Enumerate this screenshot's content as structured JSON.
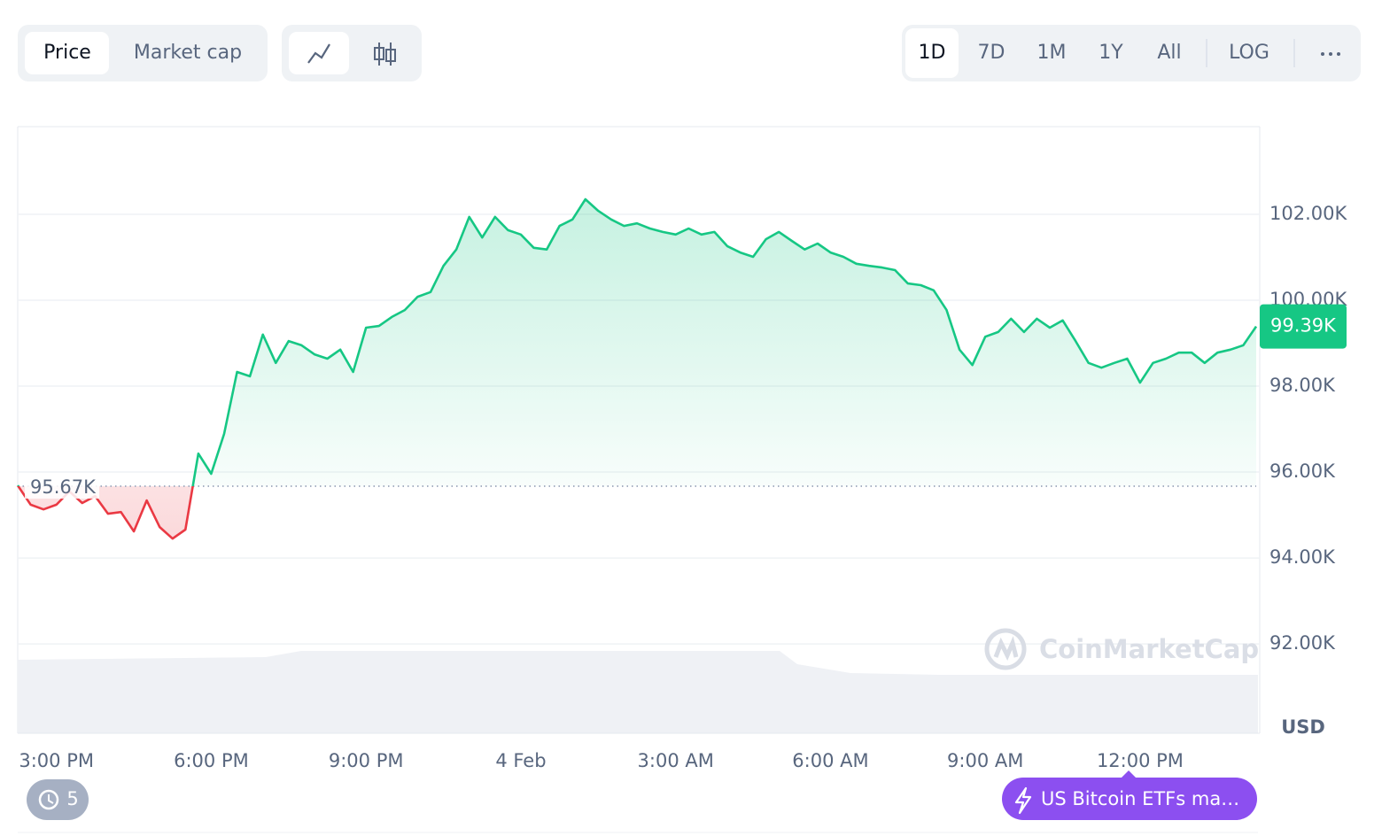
{
  "toolbar": {
    "metric_tabs": [
      "Price",
      "Market cap"
    ],
    "ranges": [
      "1D",
      "7D",
      "1M",
      "1Y",
      "All"
    ],
    "scale_button": "LOG"
  },
  "chart_data": {
    "type": "line",
    "categories": [
      null,
      null,
      null,
      "3:00 PM",
      null,
      null,
      null,
      null,
      null,
      null,
      null,
      null,
      null,
      null,
      null,
      "6:00 PM",
      null,
      null,
      null,
      null,
      null,
      null,
      null,
      null,
      null,
      null,
      null,
      "9:00 PM",
      null,
      null,
      null,
      null,
      null,
      null,
      null,
      null,
      null,
      null,
      null,
      "4 Feb",
      null,
      null,
      null,
      null,
      null,
      null,
      null,
      null,
      null,
      null,
      null,
      "3:00 AM",
      null,
      null,
      null,
      null,
      null,
      null,
      null,
      null,
      null,
      null,
      null,
      "6:00 AM",
      null,
      null,
      null,
      null,
      null,
      null,
      null,
      null,
      null,
      null,
      null,
      "9:00 AM",
      null,
      null,
      null,
      null,
      null,
      null,
      null,
      null,
      null,
      null,
      null,
      "12:00 PM",
      null,
      null,
      null,
      null,
      null,
      null,
      null,
      null,
      null
    ],
    "values": [
      95.69,
      95.24,
      95.13,
      95.24,
      95.55,
      95.28,
      95.44,
      95.03,
      95.07,
      94.62,
      95.34,
      94.72,
      94.45,
      94.66,
      96.43,
      95.96,
      96.89,
      98.33,
      98.23,
      99.2,
      98.54,
      99.05,
      98.95,
      98.74,
      98.64,
      98.85,
      98.33,
      99.36,
      99.4,
      99.61,
      99.77,
      100.08,
      100.19,
      100.8,
      101.18,
      101.94,
      101.46,
      101.94,
      101.63,
      101.53,
      101.22,
      101.18,
      101.73,
      101.88,
      102.35,
      102.08,
      101.88,
      101.73,
      101.79,
      101.67,
      101.59,
      101.53,
      101.67,
      101.53,
      101.59,
      101.26,
      101.11,
      101.01,
      101.42,
      101.59,
      101.38,
      101.18,
      101.32,
      101.11,
      101.01,
      100.85,
      100.8,
      100.76,
      100.7,
      100.39,
      100.35,
      100.23,
      99.77,
      98.85,
      98.49,
      99.15,
      99.26,
      99.57,
      99.26,
      99.57,
      99.36,
      99.53,
      99.05,
      98.54,
      98.43,
      98.54,
      98.64,
      98.08,
      98.54,
      98.64,
      98.78,
      98.78,
      98.54,
      98.78,
      98.85,
      98.95,
      99.39
    ],
    "color": "#16c784",
    "down_color": "#ea3943",
    "ylim": [
      89.92,
      104.04
    ],
    "yticks": [
      {
        "value": 92,
        "label": "92.00K"
      },
      {
        "value": 94,
        "label": "94.00K"
      },
      {
        "value": 96,
        "label": "96.00K"
      },
      {
        "value": 98,
        "label": "98.00K"
      },
      {
        "value": 100,
        "label": "100.00K"
      },
      {
        "value": 102,
        "label": "102.00K"
      }
    ],
    "grid": true,
    "reference": {
      "value": 95.67,
      "label": "95.67K"
    },
    "last_price": {
      "value": 99.39,
      "label": "99.39K"
    },
    "currency": "USD",
    "watermark": "CoinMarketCap"
  },
  "history_count": 5,
  "news_badge": "US Bitcoin ETFs ma…"
}
